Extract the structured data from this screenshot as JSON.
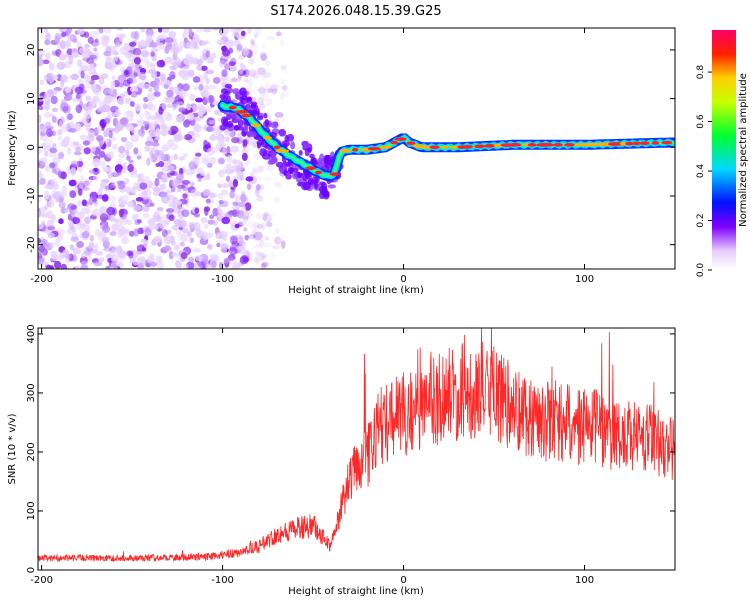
{
  "chart_data": [
    {
      "type": "heatmap",
      "title": "S174.2026.048.15.39.G25",
      "xlabel": "Height of straight line (km)",
      "ylabel": "Frequency (Hz)",
      "xlim": [
        -202,
        150
      ],
      "ylim": [
        -25,
        24.5
      ],
      "xticks": [
        -200,
        -100,
        0,
        100
      ],
      "yticks": [
        -20,
        -10,
        0,
        10,
        20
      ],
      "colorbar": {
        "label": "Normalized spectral amplitude",
        "range": [
          0,
          0.97
        ],
        "ticks": [
          0.0,
          0.2,
          0.4,
          0.6,
          0.8
        ],
        "tick_labels": [
          "0.0",
          "0.2",
          "0.4",
          "0.6",
          "0.8"
        ]
      },
      "ridge": {
        "x": [
          -100,
          -92,
          -85,
          -78,
          -70,
          -62,
          -55,
          -48,
          -42,
          -38,
          -35,
          -30,
          -20,
          -10,
          0,
          3,
          10,
          30,
          60,
          100,
          150
        ],
        "y": [
          8.5,
          8,
          6,
          3,
          0,
          -2,
          -3.5,
          -5,
          -6,
          -5.5,
          -1,
          -0.5,
          -0.5,
          0,
          2,
          1,
          0,
          0,
          0.5,
          0.5,
          1
        ],
        "peak_amplitude": 0.95
      }
    },
    {
      "type": "line",
      "xlabel": "Height of straight line (km)",
      "ylabel": "SNR (10 * v/v)",
      "xlim": [
        -202,
        150
      ],
      "ylim": [
        0,
        410
      ],
      "xticks": [
        -200,
        -100,
        0,
        100
      ],
      "yticks": [
        0,
        100,
        200,
        300,
        400
      ],
      "color": "#ff0000",
      "envelope": {
        "x": [
          -202,
          -150,
          -110,
          -90,
          -80,
          -70,
          -60,
          -50,
          -40,
          -35,
          -30,
          -25,
          -22,
          -20,
          -15,
          -10,
          0,
          10,
          20,
          30,
          40,
          50,
          60,
          80,
          100,
          120,
          140,
          150
        ],
        "y": [
          20,
          20,
          22,
          30,
          40,
          60,
          70,
          75,
          40,
          100,
          150,
          180,
          200,
          190,
          240,
          250,
          265,
          270,
          295,
          300,
          305,
          300,
          275,
          250,
          245,
          230,
          220,
          200
        ]
      }
    }
  ]
}
